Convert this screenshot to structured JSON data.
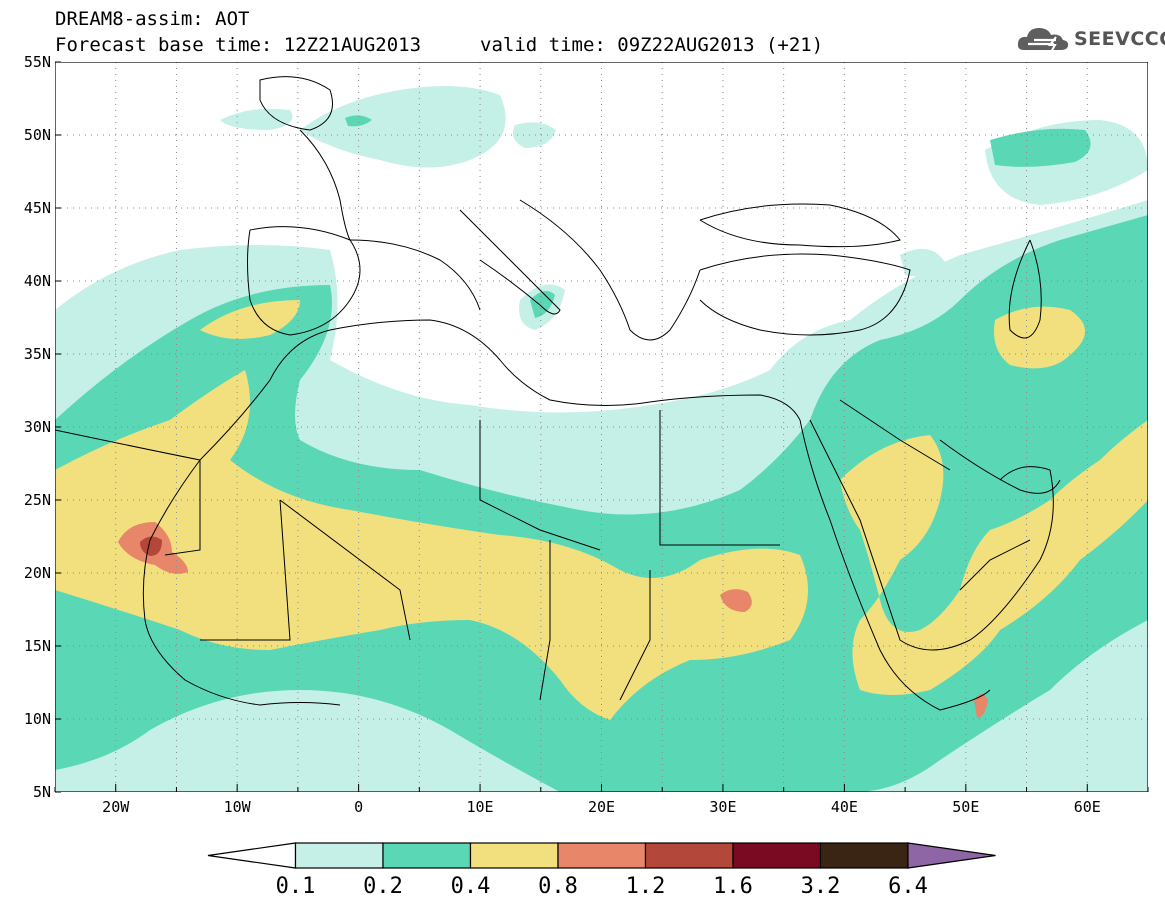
{
  "header": {
    "title": "DREAM8-assim: AOT",
    "base_time": "Forecast base time: 12Z21AUG2013",
    "valid_time": "valid time: 09Z22AUG2013 (+21)"
  },
  "logo": {
    "text": "SEEVCCC",
    "icon": "cloud-icon"
  },
  "map": {
    "region": "North Africa / Mediterranean / Middle East",
    "lon_range": [
      -25,
      65
    ],
    "lat_range": [
      5,
      55
    ],
    "grid": "dotted",
    "lat_ticks": [
      "55N",
      "50N",
      "45N",
      "40N",
      "35N",
      "30N",
      "25N",
      "20N",
      "15N",
      "10N",
      "5N"
    ],
    "lon_ticks": [
      "20W",
      "10W",
      "0",
      "10E",
      "20E",
      "30E",
      "40E",
      "50E",
      "60E"
    ]
  },
  "colorbar": {
    "labels": [
      "0.1",
      "0.2",
      "0.4",
      "0.8",
      "1.2",
      "1.6",
      "3.2",
      "6.4"
    ],
    "colors": [
      "#ffffff",
      "#c5f0e8",
      "#5ad8b6",
      "#f2e07e",
      "#e8866a",
      "#b3473a",
      "#7a0a22",
      "#3a2414",
      "#8e66a6"
    ]
  }
}
